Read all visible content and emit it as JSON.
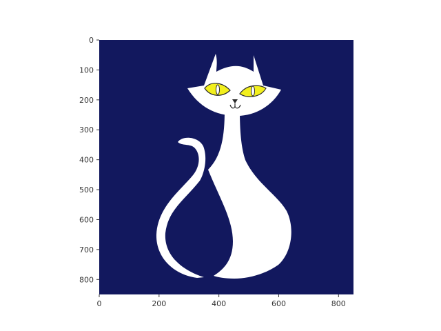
{
  "figure": {
    "image_description_icon": "white-cat-silhouette-on-navy",
    "colors": {
      "background": "#12185e",
      "cat": "#ffffff",
      "eyes": "#f2ef1d",
      "outline": "#2a2a2a",
      "axis": "#333333"
    },
    "y_ticks": [
      "0",
      "100",
      "200",
      "300",
      "400",
      "500",
      "600",
      "700",
      "800"
    ],
    "x_ticks": [
      "0",
      "200",
      "400",
      "600",
      "800"
    ]
  }
}
